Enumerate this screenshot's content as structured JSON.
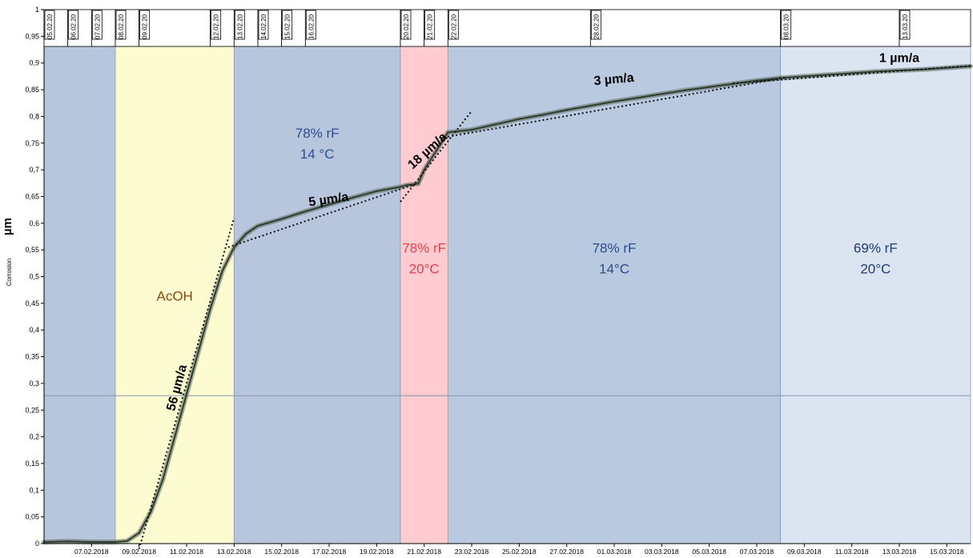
{
  "chart_data": {
    "type": "line",
    "ylabel_unit": "µm",
    "ylabel": "Corrosion",
    "ylim": [
      0,
      1
    ],
    "yticks": [
      "0",
      "0,05",
      "0,1",
      "0,15",
      "0,2",
      "0,25",
      "0,3",
      "0,35",
      "0,4",
      "0,45",
      "0,5",
      "0,55",
      "0,6",
      "0,65",
      "0,7",
      "0,75",
      "0,8",
      "0,85",
      "0,9",
      "0,95",
      "1"
    ],
    "xlim": [
      "2018-02-05",
      "2018-03-16"
    ],
    "xticks": [
      {
        "date": "2018-02-07",
        "label": "07.02.2018"
      },
      {
        "date": "2018-02-09",
        "label": "09.02.2018"
      },
      {
        "date": "2018-02-11",
        "label": "11.02.2018"
      },
      {
        "date": "2018-02-13",
        "label": "13.02.2018"
      },
      {
        "date": "2018-02-15",
        "label": "15.02.2018"
      },
      {
        "date": "2018-02-17",
        "label": "17.02.2018"
      },
      {
        "date": "2018-02-19",
        "label": "19.02.2018"
      },
      {
        "date": "2018-02-21",
        "label": "21.02.2018"
      },
      {
        "date": "2018-02-23",
        "label": "23.02.2018"
      },
      {
        "date": "2018-02-25",
        "label": "25.02.2018"
      },
      {
        "date": "2018-02-27",
        "label": "27.02.2018"
      },
      {
        "date": "2018-03-01",
        "label": "01.03.2018"
      },
      {
        "date": "2018-03-03",
        "label": "03.03.2018"
      },
      {
        "date": "2018-03-05",
        "label": "05.03.2018"
      },
      {
        "date": "2018-03-07",
        "label": "07.03.2018"
      },
      {
        "date": "2018-03-09",
        "label": "09.03.2018"
      },
      {
        "date": "2018-03-11",
        "label": "11.03.2018"
      },
      {
        "date": "2018-03-13",
        "label": "13.03.2018"
      },
      {
        "date": "2018-03-15",
        "label": "15.03.2018"
      }
    ],
    "event_markers": [
      {
        "date": "2018-02-05",
        "label": "05.02.20"
      },
      {
        "date": "2018-02-06",
        "label": "06.02.20"
      },
      {
        "date": "2018-02-07",
        "label": "07.02.20"
      },
      {
        "date": "2018-02-08",
        "label": "08.02.20"
      },
      {
        "date": "2018-02-09",
        "label": "09.02.20"
      },
      {
        "date": "2018-02-12",
        "label": "12.02.20"
      },
      {
        "date": "2018-02-13",
        "label": "13.02.20"
      },
      {
        "date": "2018-02-14",
        "label": "14.02.20"
      },
      {
        "date": "2018-02-15",
        "label": "15.02.20"
      },
      {
        "date": "2018-02-16",
        "label": "16.02.20"
      },
      {
        "date": "2018-02-20",
        "label": "20.02.20"
      },
      {
        "date": "2018-02-21",
        "label": "21.02.20"
      },
      {
        "date": "2018-02-22",
        "label": "22.02.20"
      },
      {
        "date": "2018-02-28",
        "label": "28.02.20"
      },
      {
        "date": "2018-03-08",
        "label": "08.03.20"
      },
      {
        "date": "2018-03-13",
        "label": "13.03.20"
      }
    ],
    "regions": [
      {
        "start": "2018-02-05",
        "end": "2018-02-08",
        "color": "#b7c6dd",
        "label_lines": [],
        "label_color": ""
      },
      {
        "start": "2018-02-08",
        "end": "2018-02-13",
        "color": "#fdfbd0",
        "label_lines": [
          "AcOH"
        ],
        "label_color": "#8b4a14"
      },
      {
        "start": "2018-02-13",
        "end": "2018-02-20",
        "color": "#b7c6dd",
        "label_lines": [
          "78% rF",
          "14 °C"
        ],
        "label_color": "#2d4e92"
      },
      {
        "start": "2018-02-20",
        "end": "2018-02-22",
        "color": "#fecbd0",
        "label_lines": [
          "78% rF",
          "20°C"
        ],
        "label_color": "#e8404e"
      },
      {
        "start": "2018-02-22",
        "end": "2018-03-08",
        "color": "#b9c9e0",
        "label_lines": [
          "78% rF",
          "14°C"
        ],
        "label_color": "#2b4b8c"
      },
      {
        "start": "2018-03-08",
        "end": "2018-03-16",
        "color": "#dbe4f1",
        "label_lines": [
          "69% rF",
          "20°C"
        ],
        "label_color": "#1f3a74"
      }
    ],
    "reference_line_y": 0.277,
    "series": [
      {
        "color": "#2f3b2f",
        "points": [
          [
            "2018-02-05",
            0.003
          ],
          [
            "2018-02-06",
            0.004
          ],
          [
            "2018-02-07",
            0.003
          ],
          [
            "2018-02-08",
            0.003
          ],
          [
            "2018-02-08 12:00",
            0.005
          ],
          [
            "2018-02-09",
            0.02
          ],
          [
            "2018-02-09 12:00",
            0.06
          ],
          [
            "2018-02-10",
            0.12
          ],
          [
            "2018-02-10 12:00",
            0.2
          ],
          [
            "2018-02-11",
            0.28
          ],
          [
            "2018-02-11 12:00",
            0.36
          ],
          [
            "2018-02-12",
            0.44
          ],
          [
            "2018-02-12 12:00",
            0.51
          ],
          [
            "2018-02-13",
            0.555
          ],
          [
            "2018-02-13 12:00",
            0.58
          ],
          [
            "2018-02-14",
            0.595
          ],
          [
            "2018-02-15",
            0.608
          ],
          [
            "2018-02-16",
            0.622
          ],
          [
            "2018-02-17",
            0.635
          ],
          [
            "2018-02-18",
            0.648
          ],
          [
            "2018-02-19",
            0.66
          ],
          [
            "2018-02-20",
            0.668
          ],
          [
            "2018-02-20 06:00",
            0.671
          ],
          [
            "2018-02-20 18:00",
            0.674
          ],
          [
            "2018-02-21",
            0.7
          ],
          [
            "2018-02-21 12:00",
            0.735
          ],
          [
            "2018-02-22",
            0.77
          ],
          [
            "2018-02-23",
            0.775
          ],
          [
            "2018-02-24",
            0.785
          ],
          [
            "2018-02-25",
            0.795
          ],
          [
            "2018-02-26",
            0.803
          ],
          [
            "2018-02-27",
            0.812
          ],
          [
            "2018-02-28",
            0.82
          ],
          [
            "2018-03-01",
            0.828
          ],
          [
            "2018-03-02",
            0.835
          ],
          [
            "2018-03-03",
            0.842
          ],
          [
            "2018-03-04",
            0.849
          ],
          [
            "2018-03-05",
            0.855
          ],
          [
            "2018-03-06",
            0.861
          ],
          [
            "2018-03-07",
            0.867
          ],
          [
            "2018-03-08",
            0.872
          ],
          [
            "2018-03-09",
            0.875
          ],
          [
            "2018-03-10",
            0.878
          ],
          [
            "2018-03-11",
            0.881
          ],
          [
            "2018-03-12",
            0.884
          ],
          [
            "2018-03-13",
            0.886
          ],
          [
            "2018-03-14",
            0.888
          ],
          [
            "2018-03-15",
            0.891
          ],
          [
            "2018-03-16",
            0.894
          ]
        ]
      }
    ],
    "trend_lines": [
      {
        "label": "56 µm/a",
        "from": [
          "2018-02-09",
          -0.01
        ],
        "to": [
          "2018-02-13",
          0.61
        ]
      },
      {
        "label": "5 µm/a",
        "from": [
          "2018-02-12 18:00",
          0.555
        ],
        "to": [
          "2018-02-20 18:00",
          0.675
        ]
      },
      {
        "label": "18 µm/a",
        "from": [
          "2018-02-20",
          0.64
        ],
        "to": [
          "2018-02-23",
          0.81
        ]
      },
      {
        "label": "3 µm/a",
        "from": [
          "2018-02-21 12:00",
          0.758
        ],
        "to": [
          "2018-03-08 06:00",
          0.873
        ]
      },
      {
        "label": "1 µm/a",
        "from": [
          "2018-03-06",
          0.862
        ],
        "to": [
          "2018-03-16",
          0.895
        ]
      }
    ],
    "annotations": [
      {
        "text": "56 µm/a",
        "date": "2018-02-10 18:00",
        "y": 0.29,
        "rotate": -75
      },
      {
        "text": "5 µm/a",
        "date": "2018-02-17",
        "y": 0.637,
        "rotate": -8
      },
      {
        "text": "18 µm/a",
        "date": "2018-02-21 06:00",
        "y": 0.73,
        "rotate": -42
      },
      {
        "text": "3 µm/a",
        "date": "2018-03-01",
        "y": 0.862,
        "rotate": -5
      },
      {
        "text": "1 µm/a",
        "date": "2018-03-13",
        "y": 0.902,
        "rotate": 0
      }
    ]
  }
}
